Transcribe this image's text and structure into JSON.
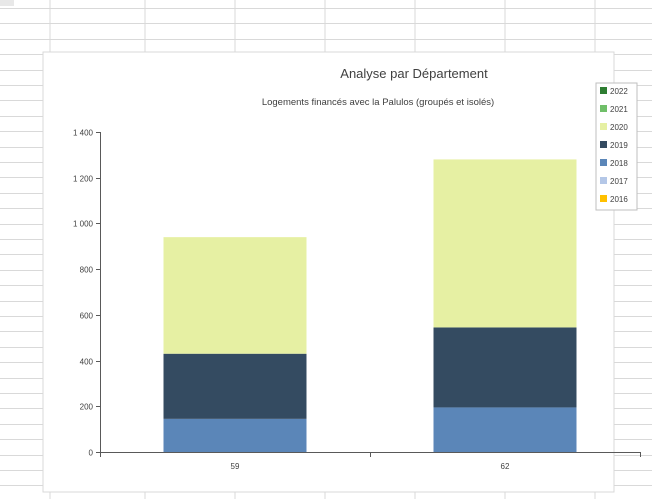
{
  "chart_data": {
    "type": "bar",
    "stacked": true,
    "title": "Analyse par Département",
    "subtitle": "Logements financés avec la Palulos (groupés et isolés)",
    "categories": [
      "59",
      "62"
    ],
    "ylim": [
      0,
      1400
    ],
    "yticks": [
      0,
      200,
      400,
      600,
      800,
      1000,
      1200,
      1400
    ],
    "ytick_labels": [
      "0",
      "200",
      "400",
      "600",
      "800",
      "1 000",
      "1 200",
      "1 400"
    ],
    "grid": false,
    "legend_position": "right",
    "series": [
      {
        "name": "2016",
        "color": "#ffc000",
        "values": [
          0,
          0
        ]
      },
      {
        "name": "2017",
        "color": "#b4c7e7",
        "values": [
          0,
          0
        ]
      },
      {
        "name": "2018",
        "color": "#5b86b8",
        "values": [
          145,
          195
        ]
      },
      {
        "name": "2019",
        "color": "#344b61",
        "values": [
          285,
          350
        ]
      },
      {
        "name": "2020",
        "color": "#e6f0a3",
        "values": [
          510,
          735
        ]
      },
      {
        "name": "2021",
        "color": "#70bf69",
        "values": [
          0,
          0
        ]
      },
      {
        "name": "2022",
        "color": "#2e7d32",
        "values": [
          0,
          0
        ]
      }
    ]
  }
}
